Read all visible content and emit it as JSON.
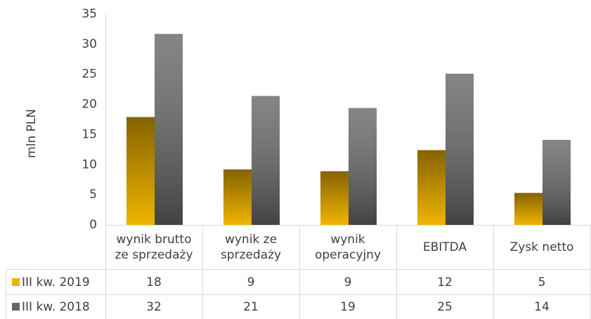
{
  "chart_data": {
    "type": "bar",
    "ylabel": "mln PLN",
    "categories": [
      "wynik brutto\nze sprzedaży",
      "wynik ze\nsprzedaży",
      "wynik\noperacyjny",
      "EBITDA",
      "Zysk netto"
    ],
    "series": [
      {
        "name": "III kw. 2019",
        "color": "#f0b400",
        "values": [
          17.9,
          9.2,
          8.9,
          12.4,
          5.3
        ],
        "value_labels": [
          "18",
          "9",
          "9",
          "12",
          "5"
        ]
      },
      {
        "name": "III kw. 2018",
        "color": "#666666",
        "values": [
          31.7,
          21.4,
          19.4,
          25.1,
          14.1
        ],
        "value_labels": [
          "32",
          "21",
          "19",
          "25",
          "14"
        ]
      }
    ],
    "ylim": [
      0,
      35
    ],
    "yticks": [
      0,
      5,
      10,
      15,
      20,
      25,
      30,
      35
    ],
    "grid": false
  }
}
